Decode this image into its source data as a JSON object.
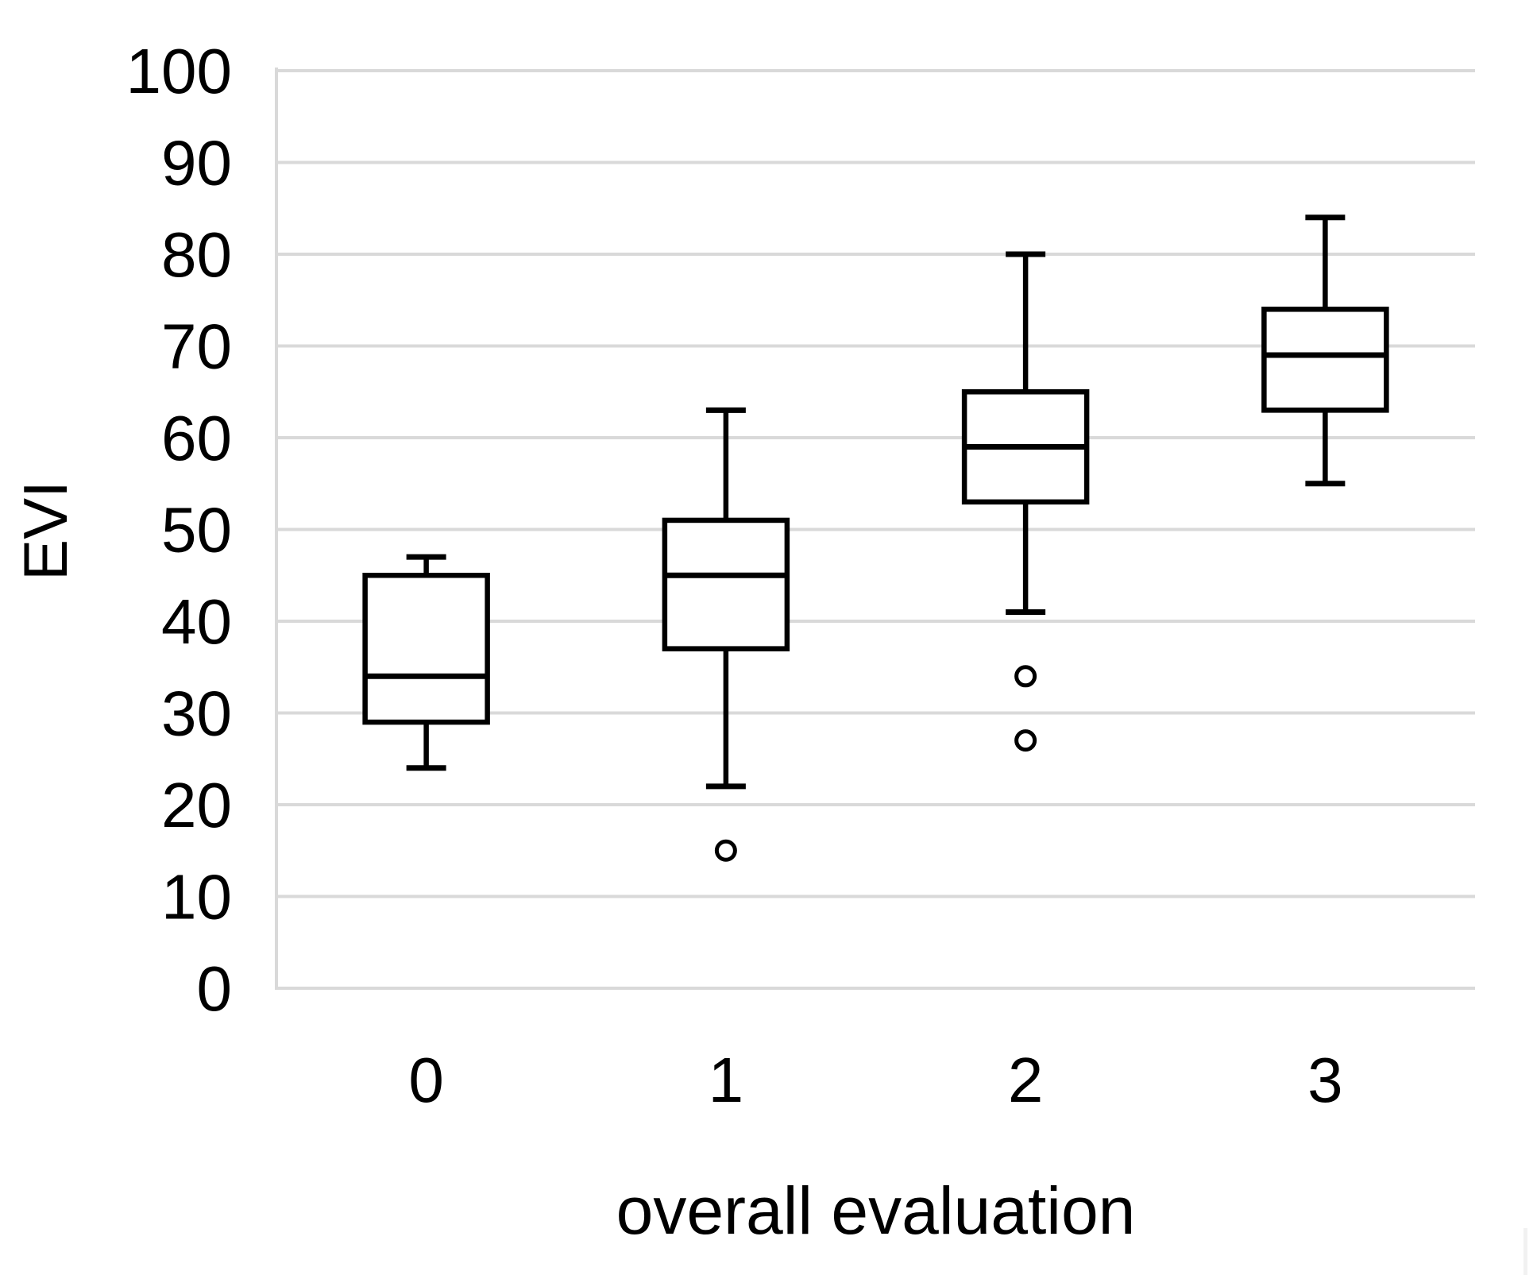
{
  "chart_data": {
    "type": "boxplot",
    "title": "",
    "xlabel": "overall evaluation",
    "ylabel": "EVI",
    "categories": [
      "0",
      "1",
      "2",
      "3"
    ],
    "ylim": [
      0,
      100
    ],
    "yticks": [
      0,
      10,
      20,
      30,
      40,
      50,
      60,
      70,
      80,
      90,
      100
    ],
    "grid": "horizontal",
    "legend": "none",
    "series": [
      {
        "category": "0",
        "min": 24,
        "q1": 29,
        "median": 34,
        "q3": 45,
        "max": 47,
        "outliers": []
      },
      {
        "category": "1",
        "min": 22,
        "q1": 37,
        "median": 45,
        "q3": 51,
        "max": 63,
        "outliers": [
          15
        ]
      },
      {
        "category": "2",
        "min": 41,
        "q1": 53,
        "median": 59,
        "q3": 65,
        "max": 80,
        "outliers": [
          34,
          27
        ]
      },
      {
        "category": "3",
        "min": 55,
        "q1": 63,
        "median": 69,
        "q3": 74,
        "max": 84,
        "outliers": []
      }
    ],
    "colors": {
      "box_stroke": "#000000",
      "box_fill": "#ffffff",
      "grid": "#d9d9d9",
      "text": "#000000",
      "background": "#ffffff",
      "edge_artifact": "#f1f1f1"
    }
  }
}
